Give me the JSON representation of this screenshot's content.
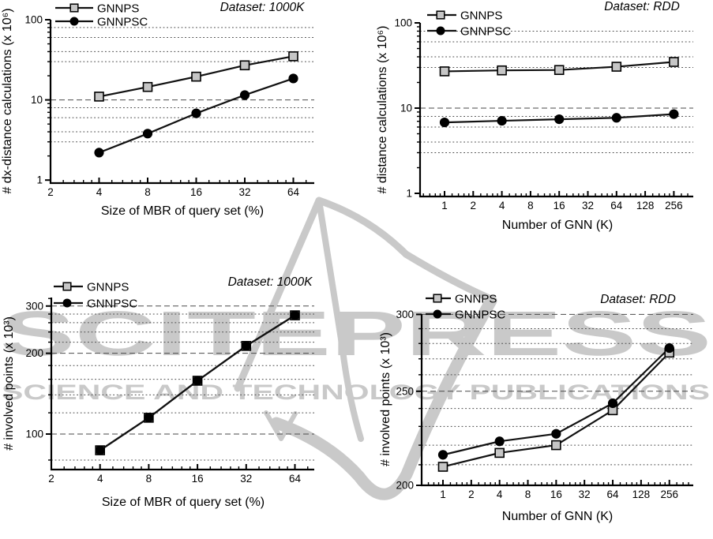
{
  "watermark": {
    "brand": "SCITEPRESS",
    "tagline": "SCIENCE AND TECHNOLOGY PUBLICATIONS",
    "color": "#c9c9c9"
  },
  "colors": {
    "axis": "#000000",
    "grid": "#4a4a4a",
    "line": "#111111",
    "gnnps_fill": "#c6c6c6",
    "gnnpsc_fill": "#000000",
    "background": "#ffffff"
  },
  "chart_data": [
    {
      "type": "line",
      "position": "top-left",
      "title": "Dataset: 1000K",
      "xlabel": "Size of MBR of query set (%)",
      "ylabel": "# dx-distance calculations (x 10⁶)",
      "xscale": "log2",
      "yscale": "log10",
      "xlim": [
        2,
        86
      ],
      "ylim": [
        0.92,
        100
      ],
      "xticks": [
        2,
        4,
        8,
        16,
        32,
        64
      ],
      "yticks": [
        1,
        10,
        100
      ],
      "grid_dashed": [
        10
      ],
      "grid_dotted": [
        3,
        4,
        6,
        8,
        30,
        40,
        60,
        80
      ],
      "legend_position": "top-left",
      "x": [
        4,
        8,
        16,
        32,
        64
      ],
      "series": [
        {
          "name": "GNNPS",
          "marker": "square",
          "values": [
            11,
            14.5,
            19.5,
            27,
            35
          ]
        },
        {
          "name": "GNNPSC",
          "marker": "circle",
          "values": [
            2.2,
            3.8,
            6.8,
            11.5,
            18.5
          ]
        }
      ]
    },
    {
      "type": "line",
      "position": "top-right",
      "title": "Dataset: RDD",
      "xlabel": "Number of GNN (K)",
      "ylabel": "# distance calculations (x 10⁶)",
      "xscale": "log2",
      "yscale": "log10",
      "xlim": [
        0.58,
        430
      ],
      "ylim": [
        0.92,
        100
      ],
      "xticks": [
        1,
        2,
        4,
        8,
        16,
        32,
        64,
        128,
        256
      ],
      "yticks": [
        1,
        10,
        100
      ],
      "grid_dashed": [
        10
      ],
      "grid_dotted": [
        3,
        4,
        6,
        8,
        30,
        40,
        60,
        80
      ],
      "legend_position": "top-left",
      "x": [
        1,
        4,
        16,
        64,
        256
      ],
      "series": [
        {
          "name": "GNNPS",
          "marker": "square",
          "values": [
            27,
            27.7,
            28,
            30.6,
            34.8
          ]
        },
        {
          "name": "GNNPSC",
          "marker": "circle",
          "values": [
            6.8,
            7.1,
            7.4,
            7.7,
            8.5
          ]
        }
      ]
    },
    {
      "type": "line",
      "position": "bottom-left",
      "title": "Dataset: 1000K",
      "xlabel": "Size of MBR of query set (%)",
      "ylabel": "# involved points (x 10³)",
      "xscale": "log2",
      "yscale": "log10",
      "xlim": [
        2,
        84
      ],
      "ylim": [
        74,
        322
      ],
      "xticks": [
        2,
        4,
        8,
        16,
        32,
        64
      ],
      "yticks": [
        100,
        200,
        300
      ],
      "grid_dashed": [
        100,
        200,
        300
      ],
      "grid_dotted": [
        80,
        120,
        140,
        160,
        180,
        220,
        240,
        260,
        280
      ],
      "legend_position": "top-left",
      "x": [
        4,
        8,
        16,
        32,
        64
      ],
      "series": [
        {
          "name": "GNNPS",
          "marker": "square",
          "values": [
            87,
            115,
            158,
            213,
            277
          ]
        },
        {
          "name": "GNNPSC",
          "marker": "circle",
          "values": [
            87,
            115,
            158,
            213,
            277
          ]
        }
      ]
    },
    {
      "type": "line",
      "position": "bottom-right",
      "title": "Dataset: RDD",
      "xlabel": "Number of GNN (K)",
      "ylabel": "# involved points (x 10³)",
      "xscale": "log2",
      "yscale": "log10",
      "xlim": [
        0.59,
        455
      ],
      "ylim": [
        200,
        300
      ],
      "xticks": [
        1,
        2,
        4,
        8,
        16,
        32,
        64,
        128,
        256
      ],
      "yticks": [
        200,
        250,
        300
      ],
      "grid_dashed": [
        250,
        300
      ],
      "grid_dotted": [
        210,
        220,
        230,
        240,
        260,
        270,
        280,
        290
      ],
      "legend_position": "top-left",
      "x": [
        1,
        4,
        16,
        64,
        256
      ],
      "series": [
        {
          "name": "GNNPS",
          "marker": "square",
          "values": [
            209,
            216,
            220,
            239,
            274
          ]
        },
        {
          "name": "GNNPSC",
          "marker": "circle",
          "values": [
            215,
            222,
            226,
            243,
            277
          ]
        }
      ]
    }
  ]
}
